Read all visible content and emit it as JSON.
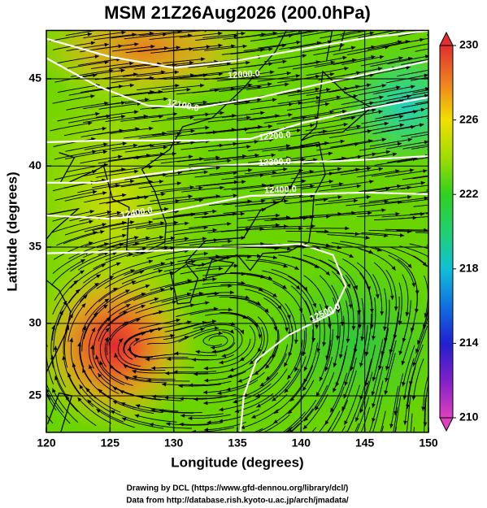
{
  "title": "MSM 21Z26Aug2026 (200.0hPa)",
  "map": {
    "xlabel": "Longitude (degrees)",
    "ylabel": "Latitude  (degrees)",
    "xlim": [
      120,
      150
    ],
    "ylim": [
      22.4,
      47.6
    ],
    "xticks": [
      120,
      125,
      130,
      135,
      140,
      145,
      150
    ],
    "yticks": [
      25,
      30,
      35,
      40,
      45
    ],
    "contour_labels": [
      "12000.0",
      "12100.0",
      "12200.0",
      "12300.0",
      "12400.0",
      "12400.0",
      "12500.0"
    ]
  },
  "colorbar": {
    "lim": [
      210,
      230
    ],
    "ticks": [
      210,
      214,
      218,
      222,
      226,
      230
    ]
  },
  "footer": [
    "Drawing by DCL (https://www.gfd-dennou.org/library/dcl/)",
    "Data from http://database.rish.kyoto-u.ac.jp/arch/jmadata/"
  ]
}
